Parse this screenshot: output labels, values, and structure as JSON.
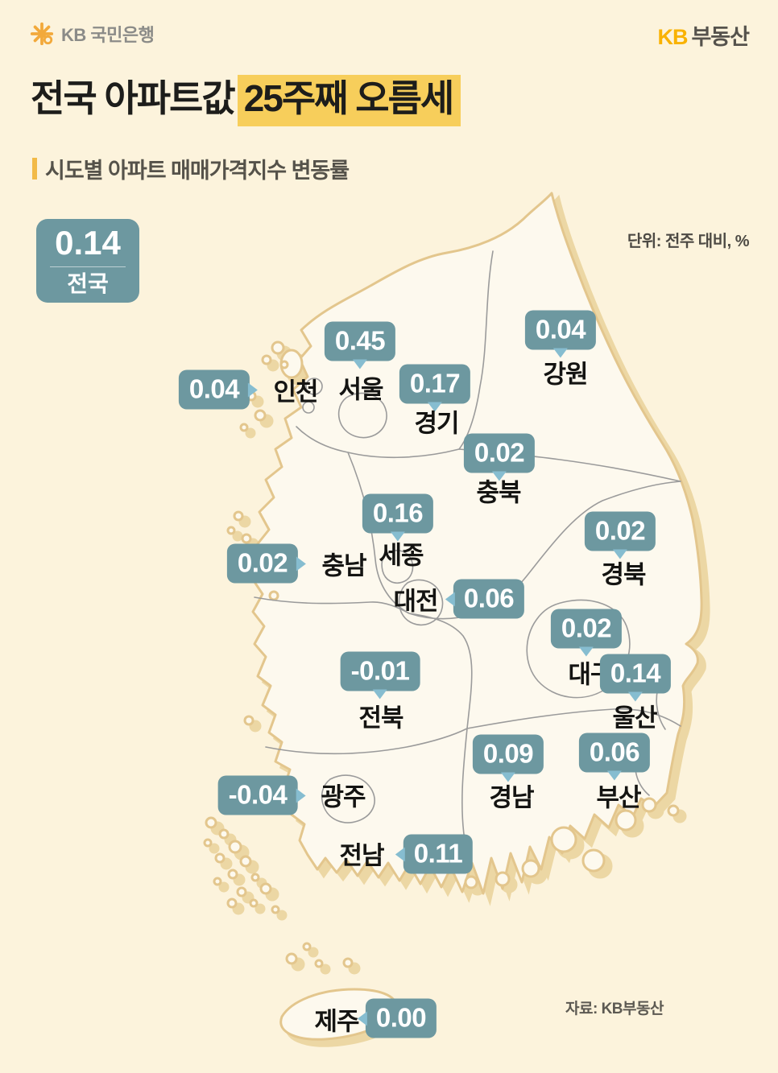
{
  "header": {
    "bank_logo_text": "KB 국민은행",
    "bank_logo_icon": "kb-star-icon",
    "brand_kb": "KB",
    "brand_rest": "부동산"
  },
  "title": {
    "plain": "전국 아파트값",
    "highlight": "25주째 오름세"
  },
  "subtitle": "시도별 아파트 매매가격지수 변동률",
  "unit_note": "단위: 전주 대비, %",
  "source_note": "자료: KB부동산",
  "national": {
    "value": "0.14",
    "label": "전국"
  },
  "regions": [
    {
      "id": "seoul",
      "name": "서울",
      "value": "0.45"
    },
    {
      "id": "incheon",
      "name": "인천",
      "value": "0.04"
    },
    {
      "id": "gyeonggi",
      "name": "경기",
      "value": "0.17"
    },
    {
      "id": "gangwon",
      "name": "강원",
      "value": "0.04"
    },
    {
      "id": "chungbuk",
      "name": "충북",
      "value": "0.02"
    },
    {
      "id": "sejong",
      "name": "세종",
      "value": "0.16"
    },
    {
      "id": "chungnam",
      "name": "충남",
      "value": "0.02"
    },
    {
      "id": "daejeon",
      "name": "대전",
      "value": "0.06"
    },
    {
      "id": "gyeongbuk",
      "name": "경북",
      "value": "0.02"
    },
    {
      "id": "daegu",
      "name": "대구",
      "value": "0.02"
    },
    {
      "id": "ulsan",
      "name": "울산",
      "value": "0.14"
    },
    {
      "id": "jeonbuk",
      "name": "전북",
      "value": "-0.01"
    },
    {
      "id": "gyeongnam",
      "name": "경남",
      "value": "0.09"
    },
    {
      "id": "busan",
      "name": "부산",
      "value": "0.06"
    },
    {
      "id": "gwangju",
      "name": "광주",
      "value": "-0.04"
    },
    {
      "id": "jeonnam",
      "name": "전남",
      "value": "0.11"
    },
    {
      "id": "jeju",
      "name": "제주",
      "value": "0.00"
    }
  ],
  "colors": {
    "page_bg": "#FCF3DC",
    "map_fill": "#FDF9EE",
    "coast_stroke": "#E3C68D",
    "coast_shadow": "#ECD7A4",
    "inner_border": "#9B9B9B",
    "badge_teal": "#6D98A0",
    "pointer_blue": "#86BDD0",
    "highlight_yellow": "#F7CE5B",
    "accent_gold": "#F2BA47",
    "kb_yellow": "#F9B200"
  },
  "chart_data": {
    "type": "map",
    "title": "시도별 아파트 매매가격지수 변동률",
    "subtitle": "전국 아파트값 25주째 오름세",
    "unit": "전주 대비, %",
    "national": {
      "name": "전국",
      "value": 0.14
    },
    "categories": [
      "서울",
      "인천",
      "경기",
      "강원",
      "충북",
      "세종",
      "충남",
      "대전",
      "경북",
      "대구",
      "울산",
      "전북",
      "경남",
      "부산",
      "광주",
      "전남",
      "제주"
    ],
    "values": [
      0.45,
      0.04,
      0.17,
      0.04,
      0.02,
      0.16,
      0.02,
      0.06,
      0.02,
      0.02,
      0.14,
      -0.01,
      0.09,
      0.06,
      -0.04,
      0.11,
      0.0
    ],
    "source": "KB부동산"
  }
}
